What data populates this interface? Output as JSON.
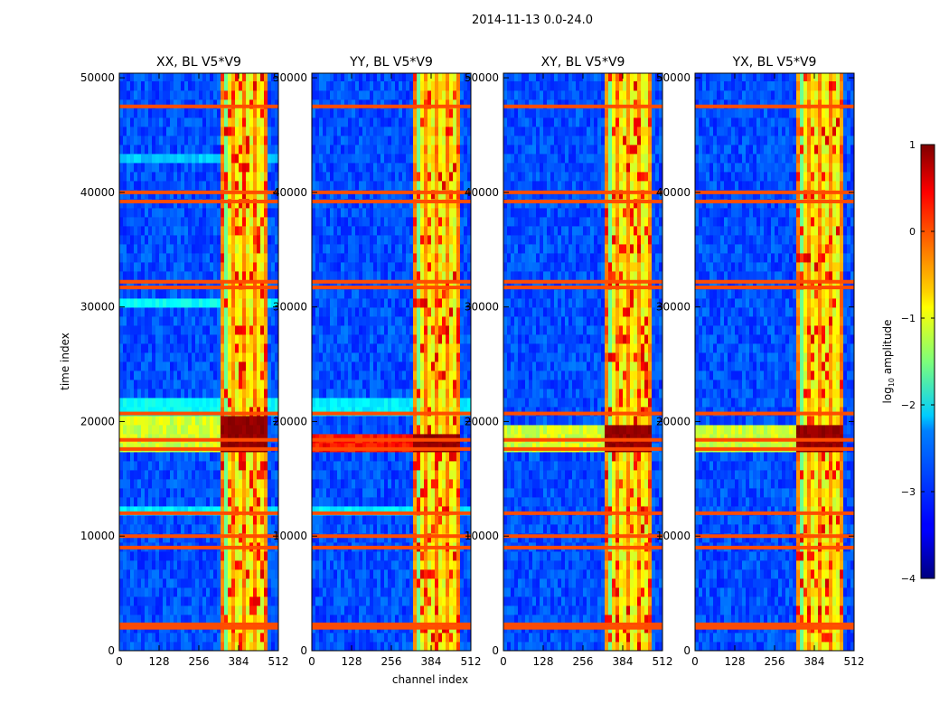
{
  "chart_data": {
    "type": "heatmap",
    "suptitle": "2014-11-13 0.0-24.0",
    "xlabel": "channel index",
    "ylabel": "time index",
    "xlim": [
      0,
      512
    ],
    "ylim": [
      0,
      50400
    ],
    "x_ticks": [
      0,
      128,
      256,
      384,
      512
    ],
    "y_ticks": [
      0,
      10000,
      20000,
      30000,
      40000,
      50000
    ],
    "colormap": "jet",
    "colorbar": {
      "label": "log10 amplitude",
      "label_base": "log",
      "label_sub": "10",
      "label_rest": " amplitude",
      "range": [
        -4,
        1
      ],
      "ticks": [
        "1",
        "0",
        "−1",
        "−2",
        "−3",
        "−4"
      ]
    },
    "panels": [
      {
        "title": "XX, BL V5*V9",
        "strong_rows": [
          [
            17000,
            20500
          ]
        ],
        "hbands": [
          [
            30200,
            31000,
            -2.1
          ],
          [
            20900,
            21800,
            -2.1
          ],
          [
            42300,
            43000,
            -2.4
          ],
          [
            11800,
            12400,
            -2.2
          ]
        ]
      },
      {
        "title": "YY, BL V5*V9",
        "strong_rows": [
          [
            17300,
            19000
          ]
        ],
        "hbands": [
          [
            20900,
            21800,
            -2.2
          ],
          [
            11800,
            12400,
            -2.2
          ]
        ]
      },
      {
        "title": "XY, BL V5*V9",
        "strong_rows": [
          [
            17000,
            19500
          ]
        ],
        "hbands": []
      },
      {
        "title": "YX, BL V5*V9",
        "strong_rows": [
          [
            17000,
            19500
          ]
        ],
        "hbands": []
      }
    ],
    "flag_lines": [
      47500,
      40000,
      39200,
      32200,
      31700,
      20700,
      18400,
      17600,
      12000,
      10000,
      9000,
      2300,
      2000
    ],
    "hot_channels": [
      [
        330,
        340
      ],
      [
        360,
        372
      ],
      [
        395,
        405
      ],
      [
        430,
        440
      ],
      [
        462,
        472
      ]
    ],
    "bright_band_channels": [
      325,
      480
    ],
    "colors": {
      "background": "#ffffff",
      "axis": "#000000"
    }
  }
}
